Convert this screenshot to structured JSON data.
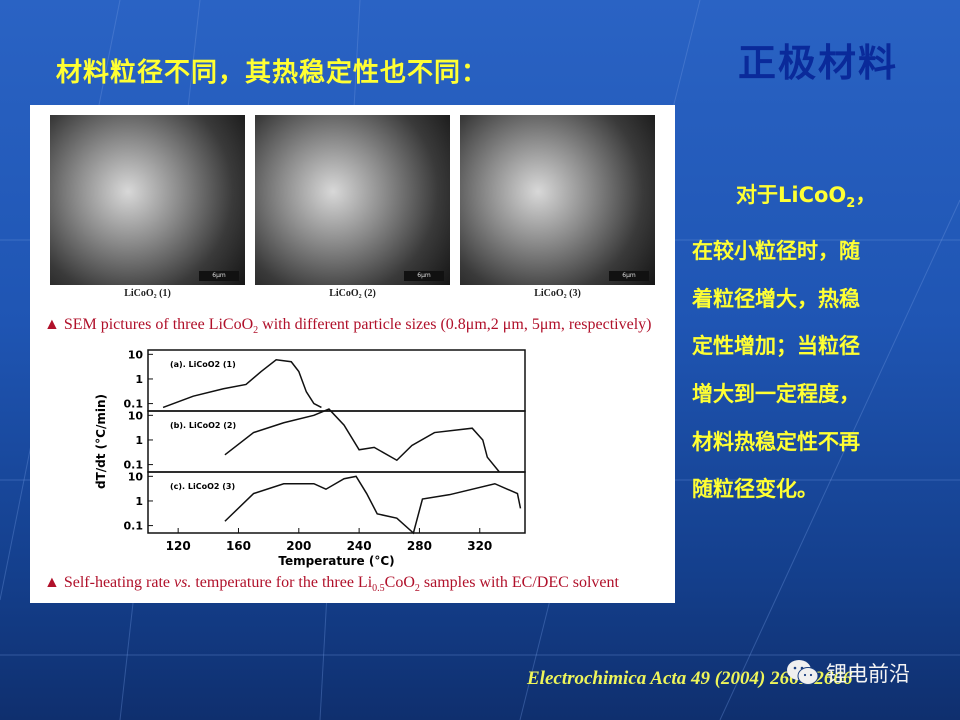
{
  "slide": {
    "title": "材料粒径不同，其热稳定性也不同：",
    "section_heading": "正极材料",
    "figure": {
      "sem_images": [
        {
          "label": "LiCoO₂ (1)",
          "scale": "6μm"
        },
        {
          "label": "LiCoO₂ (2)",
          "scale": "6μm"
        },
        {
          "label": "LiCoO₂ (3)",
          "scale": "6μm"
        }
      ],
      "caption_sem_prefix": "▲ SEM pictures of three LiCoO",
      "caption_sem_sub": "2",
      "caption_sem_suffix": " with different particle sizes (0.8μm,2 μm, 5μm, respectively)",
      "caption_chart_prefix": "▲ Self-heating rate ",
      "caption_chart_vs": "vs.",
      "caption_chart_mid": " temperature for the three Li",
      "caption_chart_sub1": "0.5",
      "caption_chart_mid2": "CoO",
      "caption_chart_sub2": "2",
      "caption_chart_suffix": " samples with EC/DEC solvent"
    },
    "side_text": {
      "line1_prefix": "对于LiCoO",
      "line1_sub": "2",
      "line1_suffix": "，",
      "lines": [
        "在较小粒径时，随",
        "着粒径增大，热稳",
        "定性增加；当粒径",
        "增大到一定程度，",
        "材料热稳定性不再",
        "随粒径变化。"
      ]
    },
    "citation": "Electrochimica Acta 49 (2004) 2661-2666",
    "watermark": "锂电前沿",
    "colors": {
      "title": "#ffff33",
      "section": "#0a2a9a",
      "caption": "#b0102a",
      "background": "#1f55b3"
    }
  },
  "chart_data": {
    "type": "line",
    "xlabel": "Temperature (°C)",
    "ylabel": "dT/dt (°C/min)",
    "xlim": [
      100,
      350
    ],
    "x_ticks": [
      "120",
      "160",
      "200",
      "240",
      "280",
      "320"
    ],
    "y_scale": "log",
    "ylim": [
      0.05,
      15
    ],
    "y_ticks": [
      "10",
      "1",
      "0.1"
    ],
    "panels": [
      {
        "label": "(a). LiCoO2 (1)",
        "x": [
          110,
          130,
          150,
          165,
          175,
          185,
          195,
          200,
          205,
          210,
          215
        ],
        "y": [
          0.07,
          0.2,
          0.4,
          0.6,
          2,
          6,
          5,
          2,
          0.3,
          0.1,
          0.07
        ]
      },
      {
        "label": "(b). LiCoO2 (2)",
        "x": [
          151,
          170,
          190,
          210,
          220,
          230,
          240,
          250,
          265,
          275,
          290,
          315,
          322,
          325,
          333
        ],
        "y": [
          0.25,
          2,
          5,
          10,
          18,
          4,
          0.4,
          0.5,
          0.15,
          0.6,
          2,
          3,
          1,
          0.2,
          0.05
        ]
      },
      {
        "label": "(c). LiCoO2 (3)",
        "x": [
          151,
          170,
          190,
          210,
          218,
          230,
          238,
          245,
          252,
          265,
          276,
          282,
          300,
          330,
          345,
          347
        ],
        "y": [
          0.15,
          2,
          5,
          5,
          3,
          8,
          10,
          2,
          0.3,
          0.2,
          0.05,
          1.2,
          1.8,
          5,
          2,
          0.5
        ]
      }
    ]
  }
}
